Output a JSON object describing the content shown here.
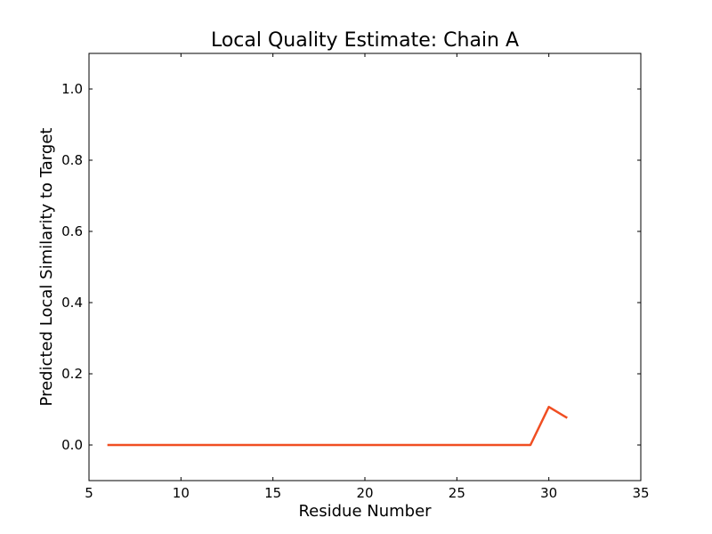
{
  "chart_data": {
    "type": "line",
    "title": "Local Quality Estimate: Chain A",
    "xlabel": "Residue Number",
    "ylabel": "Predicted Local Similarity to Target",
    "xlim": [
      5,
      35
    ],
    "ylim": [
      -0.1,
      1.1
    ],
    "xticks": [
      5,
      10,
      15,
      20,
      25,
      30,
      35
    ],
    "yticks": [
      0.0,
      0.2,
      0.4,
      0.6,
      0.8,
      1.0
    ],
    "xtick_labels": [
      "5",
      "10",
      "15",
      "20",
      "25",
      "30",
      "35"
    ],
    "ytick_labels": [
      "0.0",
      "0.2",
      "0.4",
      "0.6",
      "0.8",
      "1.0"
    ],
    "grid": false,
    "series": [
      {
        "color": "#f04e22",
        "x": [
          6,
          7,
          8,
          9,
          10,
          11,
          12,
          13,
          14,
          15,
          16,
          17,
          18,
          19,
          20,
          21,
          22,
          23,
          24,
          25,
          26,
          27,
          28,
          29,
          30,
          31
        ],
        "y": [
          0,
          0,
          0,
          0,
          0,
          0,
          0,
          0,
          0,
          0,
          0,
          0,
          0,
          0,
          0,
          0,
          0,
          0,
          0,
          0,
          0,
          0,
          0,
          0,
          0.107,
          0.076
        ]
      }
    ]
  }
}
